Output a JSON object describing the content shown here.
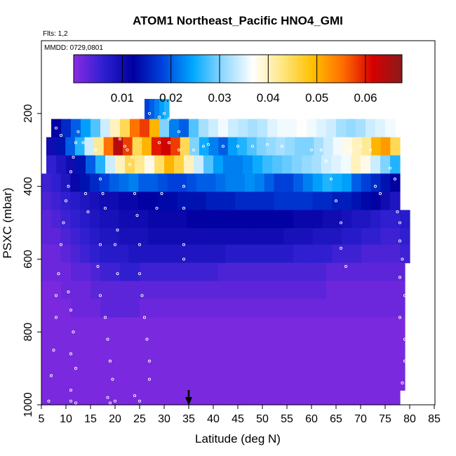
{
  "chart_data": {
    "type": "heatmap",
    "title": "ATOM1 Northeast_Pacific HNO4_GMI",
    "subtitle_flights": "Flts: 1,2",
    "subtitle_dates": "MMDD: 0729,0801",
    "xlabel": "Latitude (deg N)",
    "ylabel": "PSXC (mbar)",
    "xlim": [
      5,
      85
    ],
    "ylim": [
      1000,
      0
    ],
    "x_ticks": [
      "5",
      "10",
      "15",
      "20",
      "25",
      "30",
      "35",
      "40",
      "45",
      "50",
      "55",
      "60",
      "65",
      "70",
      "75",
      "80",
      "85"
    ],
    "y_ticks": [
      "200",
      "400",
      "600",
      "800",
      "1000"
    ],
    "colorbar": {
      "min": 0.0,
      "max": 0.0675,
      "ticks": [
        "0.01",
        "0.02",
        "0.03",
        "0.04",
        "0.05",
        "0.06"
      ],
      "colors": [
        "#8a2be2",
        "#2d1fd0",
        "#0000a0",
        "#0044dd",
        "#00a8ff",
        "#8fd8ff",
        "#ffffff",
        "#ffe680",
        "#ffc000",
        "#ff7000",
        "#d80000",
        "#8b1a1a"
      ]
    },
    "marker": {
      "label": "arrow",
      "x": 35
    },
    "rows": [
      {
        "p0": 160,
        "p1": 215,
        "x0": 26,
        "x1": 31,
        "values": [
          0.018,
          0.02,
          0.022,
          0.024,
          0.026
        ]
      },
      {
        "p0": 215,
        "p1": 265,
        "x0": 7,
        "x1": 77,
        "values": [
          0.012,
          0.016,
          0.02,
          0.024,
          0.028,
          0.034,
          0.04,
          0.045,
          0.055,
          0.058,
          0.05,
          0.03,
          0.022,
          0.02,
          0.028,
          0.032,
          0.034,
          0.036,
          0.034,
          0.033,
          0.032,
          0.033,
          0.035,
          0.036,
          0.036,
          0.037,
          0.036,
          0.035,
          0.034,
          0.032,
          0.031,
          0.032,
          0.034,
          0.035,
          0.036
        ]
      },
      {
        "p0": 265,
        "p1": 315,
        "x0": 6,
        "x1": 78,
        "values": [
          0.01,
          0.014,
          0.02,
          0.026,
          0.034,
          0.042,
          0.055,
          0.064,
          0.058,
          0.045,
          0.05,
          0.06,
          0.062,
          0.058,
          0.045,
          0.03,
          0.025,
          0.022,
          0.02,
          0.024,
          0.026,
          0.028,
          0.03,
          0.031,
          0.032,
          0.031,
          0.03,
          0.03,
          0.032,
          0.034,
          0.036,
          0.038,
          0.04,
          0.042,
          0.05,
          0.052,
          0.045
        ]
      },
      {
        "p0": 315,
        "p1": 365,
        "x0": 6,
        "x1": 78,
        "values": [
          0.006,
          0.008,
          0.01,
          0.014,
          0.02,
          0.026,
          0.034,
          0.04,
          0.045,
          0.042,
          0.038,
          0.044,
          0.05,
          0.046,
          0.04,
          0.034,
          0.028,
          0.024,
          0.022,
          0.022,
          0.023,
          0.025,
          0.027,
          0.028,
          0.029,
          0.03,
          0.031,
          0.032,
          0.034,
          0.035,
          0.036,
          0.04,
          0.038,
          0.034,
          0.03,
          0.026
        ]
      },
      {
        "p0": 365,
        "p1": 415,
        "x0": 5,
        "x1": 78,
        "values": [
          0.005,
          0.006,
          0.008,
          0.011,
          0.014,
          0.016,
          0.018,
          0.02,
          0.021,
          0.022,
          0.02,
          0.02,
          0.019,
          0.018,
          0.018,
          0.019,
          0.02,
          0.02,
          0.021,
          0.022,
          0.022,
          0.023,
          0.022,
          0.02,
          0.018,
          0.018,
          0.02,
          0.022,
          0.024,
          0.026,
          0.025,
          0.024,
          0.02,
          0.018,
          0.016,
          0.014,
          0.012
        ]
      },
      {
        "p0": 415,
        "p1": 465,
        "x0": 5,
        "x1": 78,
        "values": [
          0.004,
          0.005,
          0.006,
          0.007,
          0.008,
          0.009,
          0.01,
          0.01,
          0.011,
          0.011,
          0.012,
          0.012,
          0.013,
          0.013,
          0.014,
          0.014,
          0.014,
          0.015,
          0.015,
          0.015,
          0.016,
          0.016,
          0.016,
          0.016,
          0.017,
          0.017,
          0.017,
          0.017,
          0.016,
          0.016,
          0.015,
          0.015,
          0.014,
          0.013,
          0.012,
          0.01,
          0.008
        ]
      },
      {
        "p0": 465,
        "p1": 515,
        "x0": 5,
        "x1": 80,
        "values": [
          0.003,
          0.004,
          0.005,
          0.006,
          0.007,
          0.008,
          0.009,
          0.009,
          0.01,
          0.01,
          0.01,
          0.011,
          0.011,
          0.011,
          0.011,
          0.012,
          0.012,
          0.012,
          0.012,
          0.012,
          0.012,
          0.012,
          0.012,
          0.012,
          0.012,
          0.012,
          0.011,
          0.011,
          0.011,
          0.01,
          0.01,
          0.009,
          0.008,
          0.008,
          0.007,
          0.006,
          0.006,
          0.007
        ]
      },
      {
        "p0": 515,
        "p1": 560,
        "x0": 5,
        "x1": 80,
        "values": [
          0.003,
          0.003,
          0.004,
          0.005,
          0.006,
          0.007,
          0.008,
          0.008,
          0.009,
          0.009,
          0.009,
          0.01,
          0.01,
          0.01,
          0.01,
          0.01,
          0.01,
          0.01,
          0.01,
          0.01,
          0.01,
          0.01,
          0.01,
          0.01,
          0.01,
          0.009,
          0.009,
          0.009,
          0.008,
          0.008,
          0.008,
          0.007,
          0.007,
          0.006,
          0.006,
          0.005,
          0.005,
          0.006
        ]
      },
      {
        "p0": 560,
        "p1": 610,
        "x0": 5,
        "x1": 80,
        "values": [
          0.002,
          0.002,
          0.003,
          0.004,
          0.005,
          0.006,
          0.007,
          0.007,
          0.007,
          0.008,
          0.008,
          0.008,
          0.008,
          0.008,
          0.008,
          0.008,
          0.008,
          0.008,
          0.008,
          0.007,
          0.007,
          0.007,
          0.007,
          0.007,
          0.007,
          0.007,
          0.006,
          0.006,
          0.006,
          0.006,
          0.005,
          0.005,
          0.005,
          0.004,
          0.004,
          0.004,
          0.004,
          0.005
        ]
      },
      {
        "p0": 610,
        "p1": 660,
        "x0": 5,
        "x1": 79,
        "values": [
          0.002,
          0.002,
          0.002,
          0.003,
          0.003,
          0.004,
          0.005,
          0.005,
          0.006,
          0.006,
          0.005,
          0.005,
          0.005,
          0.005,
          0.005,
          0.005,
          0.005,
          0.005,
          0.004,
          0.004,
          0.004,
          0.004,
          0.004,
          0.004,
          0.004,
          0.004,
          0.004,
          0.004,
          0.004,
          0.003,
          0.003,
          0.003,
          0.003,
          0.003,
          0.003,
          0.003,
          0.003
        ]
      },
      {
        "p0": 660,
        "p1": 710,
        "x0": 5,
        "x1": 79,
        "values": [
          0.001,
          0.001,
          0.002,
          0.002,
          0.002,
          0.003,
          0.003,
          0.003,
          0.003,
          0.003,
          0.003,
          0.003,
          0.003,
          0.003,
          0.003,
          0.003,
          0.003,
          0.003,
          0.003,
          0.003,
          0.003,
          0.003,
          0.003,
          0.003,
          0.003,
          0.003,
          0.003,
          0.003,
          0.003,
          0.002,
          0.002,
          0.002,
          0.002,
          0.002,
          0.002,
          0.002,
          0.002
        ]
      },
      {
        "p0": 710,
        "p1": 760,
        "x0": 5,
        "x1": 79,
        "values": [
          0.001,
          0.001,
          0.001,
          0.002,
          0.002,
          0.002,
          0.003,
          0.003,
          0.003,
          0.003,
          0.002,
          0.002,
          0.002,
          0.002,
          0.002,
          0.002,
          0.002,
          0.002,
          0.002,
          0.002,
          0.002,
          0.002,
          0.002,
          0.002,
          0.002,
          0.002,
          0.002,
          0.002,
          0.002,
          0.002,
          0.002,
          0.002,
          0.002,
          0.002,
          0.002,
          0.002,
          0.002
        ]
      },
      {
        "p0": 760,
        "p1": 960,
        "x0": 5,
        "x1": 79,
        "values": [
          0.001,
          0.001,
          0.001,
          0.001,
          0.001,
          0.001,
          0.001,
          0.001,
          0.001,
          0.001,
          0.001,
          0.001,
          0.001,
          0.001,
          0.001,
          0.001,
          0.001,
          0.001,
          0.001,
          0.001,
          0.001,
          0.001,
          0.001,
          0.001,
          0.001,
          0.001,
          0.001,
          0.001,
          0.001,
          0.001,
          0.001,
          0.001,
          0.001,
          0.001,
          0.001,
          0.001,
          0.001
        ]
      },
      {
        "p0": 960,
        "p1": 1000,
        "x0": 5,
        "x1": 78,
        "values": [
          0.001,
          0.001,
          0.001,
          0.001,
          0.001,
          0.001,
          0.001,
          0.001,
          0.001,
          0.001,
          0.001,
          0.001,
          0.001,
          0.001,
          0.001,
          0.001,
          0.001,
          0.001,
          0.001,
          0.001,
          0.001,
          0.001,
          0.001,
          0.001,
          0.001,
          0.001,
          0.001,
          0.001,
          0.001,
          0.001,
          0.001,
          0.001,
          0.001,
          0.001,
          0.001,
          0.001
        ]
      }
    ],
    "flight_points": [
      [
        6.5,
        990
      ],
      [
        7,
        920
      ],
      [
        7.5,
        850
      ],
      [
        8,
        760
      ],
      [
        8,
        700
      ],
      [
        8.5,
        640
      ],
      [
        9,
        560
      ],
      [
        9.5,
        500
      ],
      [
        10,
        440
      ],
      [
        10.5,
        400
      ],
      [
        11,
        360
      ],
      [
        11.5,
        320
      ],
      [
        12,
        280
      ],
      [
        12.5,
        250
      ],
      [
        8,
        240
      ],
      [
        9,
        260
      ],
      [
        10.5,
        690
      ],
      [
        11,
        740
      ],
      [
        11.5,
        800
      ],
      [
        11,
        860
      ],
      [
        12,
        900
      ],
      [
        11,
        960
      ],
      [
        11,
        990
      ],
      [
        12,
        995
      ],
      [
        16,
        300
      ],
      [
        17,
        380
      ],
      [
        17.5,
        420
      ],
      [
        18,
        460
      ],
      [
        17,
        560
      ],
      [
        16.5,
        620
      ],
      [
        17,
        700
      ],
      [
        18,
        760
      ],
      [
        18.5,
        820
      ],
      [
        19,
        880
      ],
      [
        19.5,
        930
      ],
      [
        18.5,
        980
      ],
      [
        19,
        995
      ],
      [
        20,
        990
      ],
      [
        21,
        270
      ],
      [
        22,
        290
      ],
      [
        23,
        340
      ],
      [
        24,
        420
      ],
      [
        24.5,
        480
      ],
      [
        25,
        560
      ],
      [
        25,
        640
      ],
      [
        25.5,
        700
      ],
      [
        26,
        760
      ],
      [
        26.5,
        820
      ],
      [
        27,
        880
      ],
      [
        27,
        930
      ],
      [
        24,
        975
      ],
      [
        25,
        990
      ],
      [
        27,
        200
      ],
      [
        29,
        210
      ],
      [
        30,
        200
      ],
      [
        31,
        215
      ],
      [
        29,
        280
      ],
      [
        31,
        280
      ],
      [
        33,
        250
      ],
      [
        33,
        300
      ],
      [
        34,
        400
      ],
      [
        34,
        460
      ],
      [
        34,
        560
      ],
      [
        34,
        600
      ],
      [
        36,
        300
      ],
      [
        38,
        290
      ],
      [
        39,
        285
      ],
      [
        42,
        290
      ],
      [
        45,
        290
      ],
      [
        48,
        290
      ],
      [
        51,
        285
      ],
      [
        54,
        290
      ],
      [
        60,
        300
      ],
      [
        62,
        300
      ],
      [
        63,
        330
      ],
      [
        64,
        380
      ],
      [
        65,
        440
      ],
      [
        66,
        500
      ],
      [
        66,
        570
      ],
      [
        67,
        620
      ],
      [
        68,
        300
      ],
      [
        70,
        290
      ],
      [
        72,
        300
      ],
      [
        73,
        400
      ],
      [
        74,
        420
      ],
      [
        76,
        350
      ],
      [
        77,
        380
      ],
      [
        77.5,
        470
      ],
      [
        78,
        500
      ],
      [
        78,
        550
      ],
      [
        78.5,
        600
      ],
      [
        78,
        650
      ],
      [
        79,
        700
      ],
      [
        78,
        760
      ],
      [
        79,
        820
      ],
      [
        79,
        880
      ],
      [
        78.5,
        940
      ],
      [
        79,
        980
      ],
      [
        20.5,
        640
      ],
      [
        20,
        560
      ],
      [
        20.5,
        520
      ],
      [
        14,
        420
      ],
      [
        14.5,
        470
      ],
      [
        13.5,
        280
      ],
      [
        22.5,
        300
      ],
      [
        23.5,
        320
      ],
      [
        29.5,
        420
      ],
      [
        28.5,
        460
      ]
    ]
  }
}
